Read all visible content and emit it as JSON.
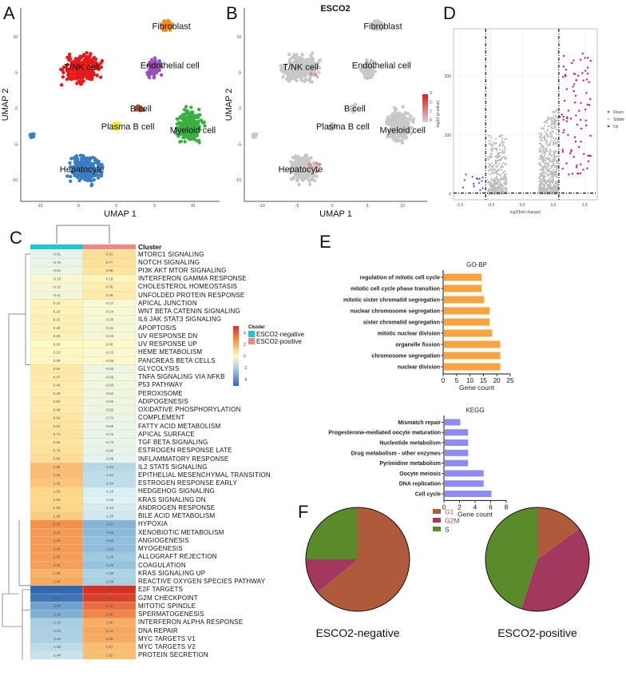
{
  "panels": {
    "A": "A",
    "B": "B",
    "C": "C",
    "D": "D",
    "E": "E",
    "F": "F"
  },
  "chart_data": [
    {
      "id": "A",
      "type": "scatter",
      "title": "",
      "xlabel": "UMAP_1",
      "ylabel": "UMAP_2",
      "xlim": [
        -12.5,
        13.5
      ],
      "ylim": [
        -13,
        14
      ],
      "xticks": [
        "-10",
        "-5",
        "0",
        "5",
        "10"
      ],
      "yticks": [
        "-10",
        "-5",
        "0",
        "5",
        "10"
      ],
      "clusters": [
        {
          "name": "T/NK cell",
          "color": "#e41a1c",
          "cx": -4.5,
          "cy": 5.5,
          "label_x": -4.5,
          "label_y": 5.8
        },
        {
          "name": "Fibroblast",
          "color": "#ff8c1a",
          "cx": 6.5,
          "cy": 11.5,
          "label_x": 7.2,
          "label_y": 11.5
        },
        {
          "name": "Endothelial cell",
          "color": "#9b4fb8",
          "cx": 5,
          "cy": 5.5,
          "label_x": 7,
          "label_y": 6
        },
        {
          "name": "B cell",
          "color": "#a0522d",
          "cx": 3,
          "cy": 0,
          "label_x": 3.2,
          "label_y": 0
        },
        {
          "name": "Plasma B cell",
          "color": "#ffef1a",
          "cx": 0,
          "cy": -2.5,
          "label_x": 1.5,
          "label_y": -2.5
        },
        {
          "name": "Myeloid cell",
          "color": "#3cb043",
          "cx": 9.5,
          "cy": -2.5,
          "label_x": 10,
          "label_y": -3
        },
        {
          "name": "Hepatocyte",
          "color": "#3a7dc0",
          "cx": -4,
          "cy": -8.5,
          "label_x": -4.5,
          "label_y": -8.5
        },
        {
          "name": "",
          "color": "#3a7dc0",
          "cx": -11,
          "cy": -3.8,
          "label_x": null,
          "label_y": null
        }
      ]
    },
    {
      "id": "B",
      "type": "scatter",
      "title": "ESCO2",
      "xlabel": "UMAP_1",
      "ylabel": "UMAP_2",
      "xlim": [
        -12.5,
        13.5
      ],
      "ylim": [
        -13,
        14
      ],
      "xticks": [
        "-10",
        "-5",
        "0",
        "5",
        "10"
      ],
      "yticks": [
        "-10",
        "-5",
        "0",
        "5",
        "10"
      ],
      "colorbar": {
        "min": 0,
        "max": 3,
        "ticks": [
          "0",
          "1",
          "2",
          "3"
        ],
        "low": "#d3d3d3",
        "high": "#e41a1c"
      },
      "labels": [
        "Fibroblast",
        "T/NK cell",
        "Endothelial cell",
        "B cell",
        "Plasma B cell",
        "Myeloid cell",
        "Hepatocyte"
      ]
    },
    {
      "id": "D",
      "type": "scatter",
      "title": "",
      "xlabel": "log2(fold change)",
      "ylabel": "-log10 (p-value)",
      "xlim": [
        -1.1,
        1.2
      ],
      "ylim": [
        -10,
        280
      ],
      "xticks": [
        "-1.0",
        "-0.5",
        "0.0",
        "0.5",
        "1.0"
      ],
      "yticks": [
        "0",
        "100",
        "200"
      ],
      "thresholds": {
        "fc": [
          -0.585,
          0.585
        ],
        "p": 1.3
      },
      "legend": [
        {
          "name": "Down",
          "color": "#6a5acd"
        },
        {
          "name": "Stable",
          "color": "#bdbdbd"
        },
        {
          "name": "Up",
          "color": "#c71585"
        }
      ],
      "legend_position": "right"
    },
    {
      "id": "C",
      "type": "heatmap",
      "title": "",
      "columns": [
        "ESCO2-negative",
        "ESCO2-positive"
      ],
      "annotation_title": "Cluster",
      "annotation_colors": {
        "ESCO2-negative": "#1ec8d2",
        "ESCO2-positive": "#f08880"
      },
      "colorbar": {
        "min": -5,
        "max": 5,
        "ticks": [
          "4",
          "2",
          "0",
          "-2",
          "-4"
        ]
      },
      "rows": [
        {
          "name": "MTORC1  SIGNALING",
          "neg": -0.81,
          "pos": 0.81
        },
        {
          "name": "NOTCH  SIGNALING",
          "neg": -0.76,
          "pos": 0.77
        },
        {
          "name": "PI3K  AKT  MTOR  SIGNALING",
          "neg": -0.63,
          "pos": 0.68
        },
        {
          "name": "INTERFERON  GAMMA  RESPONSE",
          "neg": -0.18,
          "pos": 0.18
        },
        {
          "name": "CHOLESTEROL  HOMEOSTASIS",
          "neg": -0.32,
          "pos": 0.36
        },
        {
          "name": "UNFOLDED  PROTEIN  RESPONSE",
          "neg": -0.41,
          "pos": 0.49
        },
        {
          "name": "APICAL  JUNCTION",
          "neg": 0.24,
          "pos": -0.27
        },
        {
          "name": "WNT  BETA  CATENIN  SIGNALING",
          "neg": 0.23,
          "pos": -0.24
        },
        {
          "name": "IL6  JAK  STAT3  SIGNALING",
          "neg": 0.31,
          "pos": -0.35
        },
        {
          "name": "APOPTOSIS",
          "neg": 0.28,
          "pos": -0.31
        },
        {
          "name": "UV  RESPONSE  DN",
          "neg": 0.29,
          "pos": -0.33
        },
        {
          "name": "UV  RESPONSE  UP",
          "neg": 0.0,
          "pos": -0.0
        },
        {
          "name": "HEME  METABOLISM",
          "neg": 0.13,
          "pos": -0.15
        },
        {
          "name": "PANCREAS  BETA  CELLS",
          "neg": 0.08,
          "pos": -0.08
        },
        {
          "name": "GLYCOLYSIS",
          "neg": 0.54,
          "pos": -0.62
        },
        {
          "name": "TNFA  SIGNALING  VIA  NFKB",
          "neg": 0.47,
          "pos": -0.49
        },
        {
          "name": "P53  PATHWAY",
          "neg": 0.44,
          "pos": -0.5
        },
        {
          "name": "PEROXISOME",
          "neg": 0.45,
          "pos": -0.52
        },
        {
          "name": "ADIPOGENESIS",
          "neg": 0.5,
          "pos": -0.56
        },
        {
          "name": "OXIDATIVE  PHOSPHORYLATION",
          "neg": 0.49,
          "pos": -0.52
        },
        {
          "name": "COMPLEMENT",
          "neg": 0.64,
          "pos": -0.71
        },
        {
          "name": "FATTY  ACID  METABOLISM",
          "neg": 0.63,
          "pos": -0.69
        },
        {
          "name": "APICAL  SURFACE",
          "neg": 0.71,
          "pos": -0.72
        },
        {
          "name": "TGF  BETA  SIGNALING",
          "neg": 0.66,
          "pos": -0.73
        },
        {
          "name": "ESTROGEN  RESPONSE  LATE",
          "neg": 0.75,
          "pos": -0.8
        },
        {
          "name": "INFLAMMATORY  RESPONSE",
          "neg": 0.86,
          "pos": -0.88
        },
        {
          "name": "IL2  STAT5  SIGNALING",
          "neg": 1.66,
          "pos": -1.83
        },
        {
          "name": "EPITHELIAL  MESENCHYMAL  TRANSITION",
          "neg": 1.63,
          "pos": -1.64
        },
        {
          "name": "ESTROGEN  RESPONSE  EARLY",
          "neg": 1.45,
          "pos": -1.64
        },
        {
          "name": "HEDGEHOG  SIGNALING",
          "neg": 1.05,
          "pos": -1.1
        },
        {
          "name": "KRAS  SIGNALING  DN",
          "neg": 1.0,
          "pos": -1.02
        },
        {
          "name": "ANDROGEN  RESPONSE",
          "neg": 1.08,
          "pos": -1.24
        },
        {
          "name": "BILE  ACID  METABOLISM",
          "neg": 1.29,
          "pos": -1.3
        },
        {
          "name": "HYPOXIA",
          "neg": 2.65,
          "pos": -2.87
        },
        {
          "name": "XENOBIOTIC  METABOLISM",
          "neg": 2.42,
          "pos": -2.69
        },
        {
          "name": "ANGIOGENESIS",
          "neg": 2.38,
          "pos": -2.56
        },
        {
          "name": "MYOGENESIS",
          "neg": 2.4,
          "pos": -2.62
        },
        {
          "name": "ALLOGRAFT  REJECTION",
          "neg": 2.35,
          "pos": -2.25
        },
        {
          "name": "COAGULATION",
          "neg": 2.3,
          "pos": -2.46
        },
        {
          "name": "KRAS  SIGNALING  UP",
          "neg": 1.89,
          "pos": -1.98
        },
        {
          "name": "REACTIVE  OXYGEN  SPECIES  PATHWAY",
          "neg": 2.08,
          "pos": -2.08
        },
        {
          "name": "E2F  TARGETS",
          "neg": -5.02,
          "pos": 5.03
        },
        {
          "name": "G2M  CHECKPOINT",
          "neg": -4.66,
          "pos": 4.63
        },
        {
          "name": "MITOTIC  SPINDLE",
          "neg": -3.39,
          "pos": 3.45
        },
        {
          "name": "SPERMATOGENESIS",
          "neg": -2.98,
          "pos": 2.9
        },
        {
          "name": "INTERFERON  ALPHA  RESPONSE",
          "neg": -2.1,
          "pos": 1.96
        },
        {
          "name": "DNA  REPAIR",
          "neg": -2.03,
          "pos": 2.14
        },
        {
          "name": "MYC  TARGETS  V1",
          "neg": -2.04,
          "pos": 2.05
        },
        {
          "name": "MYC  TARGETS  V2",
          "neg": -1.69,
          "pos": 1.67
        },
        {
          "name": "PROTEIN  SECRETION",
          "neg": -1.48,
          "pos": 1.62
        }
      ]
    },
    {
      "id": "E-GO",
      "type": "bar",
      "orientation": "horizontal",
      "title": "GO-BP",
      "xlabel": "Gene count",
      "xlim": [
        0,
        25
      ],
      "xticks": [
        "0",
        "5",
        "10",
        "15",
        "20",
        "25"
      ],
      "color": "#f7a440",
      "categories": [
        "regulation of mitotic cell cycle",
        "mitotic cell cycle phase transition",
        "mitotic sister chromatid segregation",
        "nuclear chromosome segregation",
        "sister chromatid segregation",
        "mitotic nuclear division",
        "organelle fission",
        "chromosome segregation",
        "nuclear division"
      ],
      "values": [
        14,
        14,
        15,
        17,
        17,
        18,
        21,
        21,
        21
      ]
    },
    {
      "id": "E-KEGG",
      "type": "bar",
      "orientation": "horizontal",
      "title": "KEGG",
      "xlabel": "Gene count",
      "xlim": [
        0,
        8
      ],
      "xticks": [
        "0",
        "2",
        "4",
        "6",
        "8"
      ],
      "color": "#8c8cf2",
      "categories": [
        "Mismatch repair",
        "Progesterone-mediated oocyte maturation",
        "Nucleotide metabolism",
        "Drug metabolism - other enzymes",
        "Pyrimidine metabolism",
        "Oocyte meiosis",
        "DNA replication",
        "Cell cycle"
      ],
      "values": [
        2,
        3,
        3,
        3,
        3,
        5,
        5,
        6
      ]
    },
    {
      "id": "F",
      "type": "pie",
      "legend": [
        {
          "name": "G1",
          "color": "#b05a3c"
        },
        {
          "name": "G2M",
          "color": "#a3385e"
        },
        {
          "name": "S",
          "color": "#5a8a2a"
        }
      ],
      "legend_position": "top-center",
      "pies": [
        {
          "title": "ESCO2-negative",
          "slices": [
            {
              "name": "G1",
              "value": 64
            },
            {
              "name": "G2M",
              "value": 11
            },
            {
              "name": "S",
              "value": 25
            }
          ]
        },
        {
          "title": "ESCO2-positive",
          "slices": [
            {
              "name": "G1",
              "value": 15
            },
            {
              "name": "G2M",
              "value": 40
            },
            {
              "name": "S",
              "value": 45
            }
          ]
        }
      ]
    }
  ]
}
